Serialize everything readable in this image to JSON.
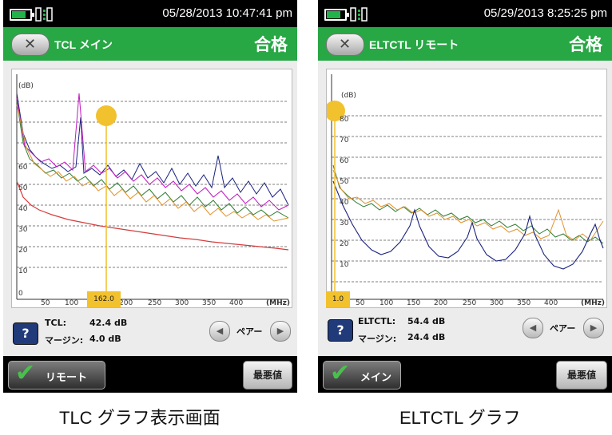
{
  "screens": [
    {
      "time": "05/28/2013 10:47:41 pm",
      "title": "TCL メイン",
      "verdict": "合格",
      "y_unit": "(dB)",
      "y_ticks": [
        "10",
        "20",
        "30",
        "40",
        "50",
        "60",
        "0"
      ],
      "x_ticks": [
        "50",
        "100",
        "150",
        "200",
        "250",
        "300",
        "350",
        "400"
      ],
      "x_unit": "(MHz)",
      "cursor_value": "162.0",
      "metric_label": "TCL:",
      "metric_value": "42.4 dB",
      "margin_label": "マージン:",
      "margin_value": "4.0 dB",
      "pair_label": "ペアー",
      "nav_label": "リモート",
      "worst_label": "最悪値",
      "caption": "TLC グラフ表示画面"
    },
    {
      "time": "05/29/2013 8:25:25 pm",
      "title": "ELTCTL リモート",
      "verdict": "合格",
      "y_unit": "(dB)",
      "y_ticks": [
        "80",
        "70",
        "60",
        "50",
        "40",
        "30",
        "20",
        "10"
      ],
      "x_ticks": [
        "50",
        "100",
        "150",
        "200",
        "250",
        "300",
        "350",
        "400"
      ],
      "x_unit": "(MHz)",
      "cursor_value": "1.0",
      "metric_label": "ELTCTL:",
      "metric_value": "54.4 dB",
      "margin_label": "マージン:",
      "margin_value": "24.4 dB",
      "pair_label": "ペアー",
      "nav_label": "メイン",
      "worst_label": "最悪値",
      "caption": "ELTCTL グラフ"
    }
  ],
  "colors": {
    "title_bar": "#28a745",
    "status_bar": "#000000",
    "cursor": "#f2c12e",
    "limit_line": "#d23c3c",
    "trace_blue": "#1a237e",
    "trace_green": "#2e7d32",
    "trace_magenta": "#c218c2",
    "trace_orange": "#e0922e"
  },
  "icons": [
    "battery-icon",
    "network-icon",
    "back-icon",
    "help-icon",
    "pair-prev-icon",
    "pair-next-icon",
    "checkmark-icon"
  ]
}
